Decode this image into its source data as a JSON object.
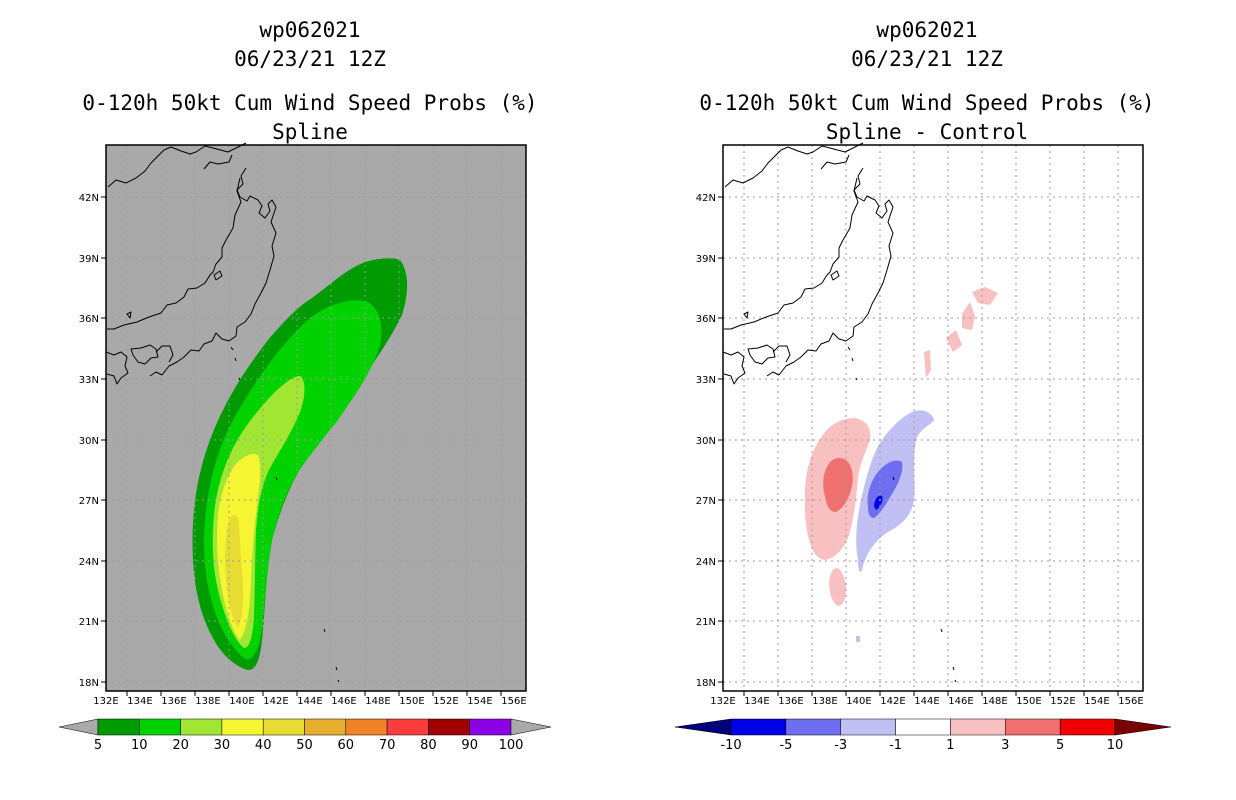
{
  "left_panel": {
    "title_line1": "wp062021",
    "title_line2": "06/23/21 12Z",
    "title_line3": "0-120h 50kt Cum Wind Speed Probs (%)",
    "subtitle": "Spline",
    "background": "#a9a9a9",
    "x_ticks": [
      "132E",
      "134E",
      "136E",
      "138E",
      "140E",
      "142E",
      "144E",
      "146E",
      "148E",
      "150E",
      "152E",
      "154E",
      "156E"
    ],
    "y_ticks": [
      "42N",
      "39N",
      "36N",
      "33N",
      "30N",
      "27N",
      "24N",
      "21N",
      "18N"
    ],
    "colorbar": {
      "labels": [
        "5",
        "10",
        "20",
        "30",
        "40",
        "50",
        "60",
        "70",
        "80",
        "90",
        "100"
      ],
      "colors": [
        "#009b00",
        "#00d200",
        "#a0e632",
        "#f5f532",
        "#e6dc32",
        "#e6af2d",
        "#f08228",
        "#fa3c3c",
        "#a00000",
        "#8c00e6"
      ],
      "end_color": "#a9a9a9"
    }
  },
  "right_panel": {
    "title_line1": "wp062021",
    "title_line2": "06/23/21 12Z",
    "title_line3": "0-120h 50kt Cum Wind Speed Probs (%)",
    "subtitle": "Spline - Control",
    "background": "#ffffff",
    "x_ticks": [
      "132E",
      "134E",
      "136E",
      "138E",
      "140E",
      "142E",
      "144E",
      "146E",
      "148E",
      "150E",
      "152E",
      "154E",
      "156E"
    ],
    "y_ticks": [
      "42N",
      "39N",
      "36N",
      "33N",
      "30N",
      "27N",
      "24N",
      "21N",
      "18N"
    ],
    "colorbar": {
      "labels": [
        "-10",
        "-5",
        "-3",
        "-1",
        "1",
        "3",
        "5",
        "10"
      ],
      "colors": [
        "#0000e6",
        "#6e6ef0",
        "#c0c0f5",
        "#ffffff",
        "#f8c0c0",
        "#f07070",
        "#f00000"
      ],
      "low_end_color": "#00007a",
      "high_end_color": "#7a0000"
    }
  }
}
